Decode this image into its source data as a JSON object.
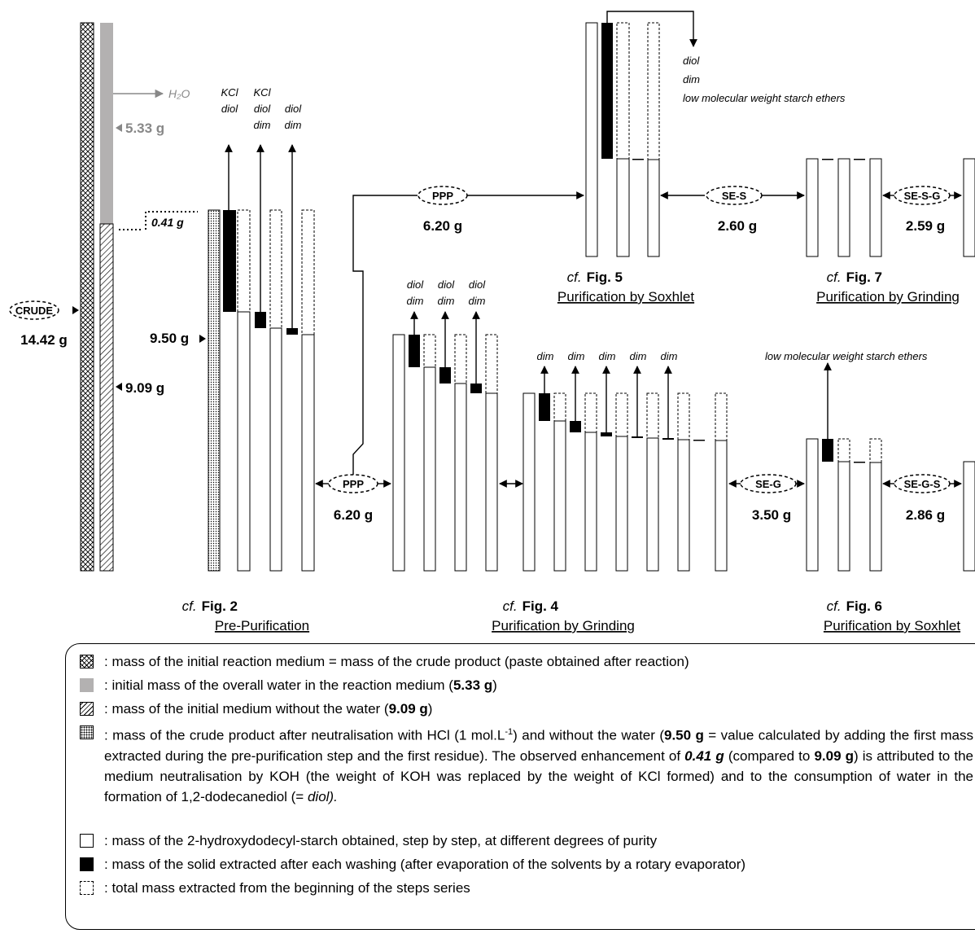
{
  "crude": {
    "label": "CRUDE",
    "mass": "14.42 g"
  },
  "water": {
    "label": "H₂O",
    "mass": "5.33 g"
  },
  "dry_medium": {
    "mass": "9.09 g"
  },
  "enhancement": {
    "mass": "0.41 g"
  },
  "prepurification": {
    "start_mass": "9.50 g",
    "labels": [
      [
        "KCl",
        "diol"
      ],
      [
        "KCl",
        "diol",
        "dim"
      ],
      [
        "diol",
        "dim"
      ]
    ],
    "caption_prefix": "cf.",
    "caption_fig": "Fig. 2",
    "caption_title": "Pre-Purification"
  },
  "ppp_lower": {
    "label": "PPP",
    "mass": "6.20 g"
  },
  "ppp_upper": {
    "label": "PPP",
    "mass": "6.20 g"
  },
  "grinding4": {
    "labels_a": [
      [
        "diol",
        "dim"
      ],
      [
        "diol",
        "dim"
      ],
      [
        "diol",
        "dim"
      ]
    ],
    "labels_b": [
      "dim",
      "dim",
      "dim",
      "dim",
      "dim"
    ],
    "caption_prefix": "cf.",
    "caption_fig": "Fig. 4",
    "caption_title": "Purification by Grinding"
  },
  "soxhlet5": {
    "labels": [
      "diol",
      "dim",
      "low molecular weight starch ethers"
    ],
    "caption_prefix": "cf.",
    "caption_fig": "Fig. 5",
    "caption_title": "Purification by Soxhlet"
  },
  "se_s": {
    "label": "SE-S",
    "mass": "2.60 g"
  },
  "se_s_g": {
    "label": "SE-S-G",
    "mass": "2.59 g"
  },
  "grinding7": {
    "caption_prefix": "cf.",
    "caption_fig": "Fig. 7",
    "caption_title": "Purification by Grinding"
  },
  "se_g": {
    "label": "SE-G",
    "mass": "3.50 g"
  },
  "se_g_s": {
    "label": "SE-G-S",
    "mass": "2.86 g"
  },
  "soxhlet6": {
    "label": "low molecular weight starch ethers",
    "caption_prefix": "cf.",
    "caption_fig": "Fig. 6",
    "caption_title": "Purification by Soxhlet"
  },
  "legend": {
    "crude_medium": ": mass of the initial reaction medium = mass of the crude product (paste obtained after reaction)",
    "water_a": ": initial mass of the overall water in the reaction medium (",
    "water_b": "5.33 g",
    "water_c": ")",
    "dry_a": ": mass of the initial medium without the water (",
    "dry_b": "9.09 g",
    "dry_c": ")",
    "neut_a": ": mass of the crude product after neutralisation with HCl (1 mol.L",
    "neut_sup": "-1",
    "neut_b": ") and without the water (",
    "neut_c": "9.50 g",
    "neut_d": " = value calculated by adding the first mass extracted during the pre-purification step and the first residue). The observed enhancement of ",
    "neut_e": "0.41 g",
    "neut_f": " (compared to ",
    "neut_g": "9.09 g",
    "neut_h": ") is attributed to the medium neutralisation by KOH (the weight of KOH was replaced by the weight of KCl formed) and to the consumption of water in the formation of 1,2-dodecanediol (= ",
    "neut_i": "diol).",
    "white": ": mass of the 2-hydroxydodecyl-starch obtained, step by step, at different degrees of purity",
    "black": ": mass of the solid extracted after each washing (after evaporation of the solvents by a rotary evaporator)",
    "dashed": ": total mass extracted from the beginning of the steps series"
  }
}
